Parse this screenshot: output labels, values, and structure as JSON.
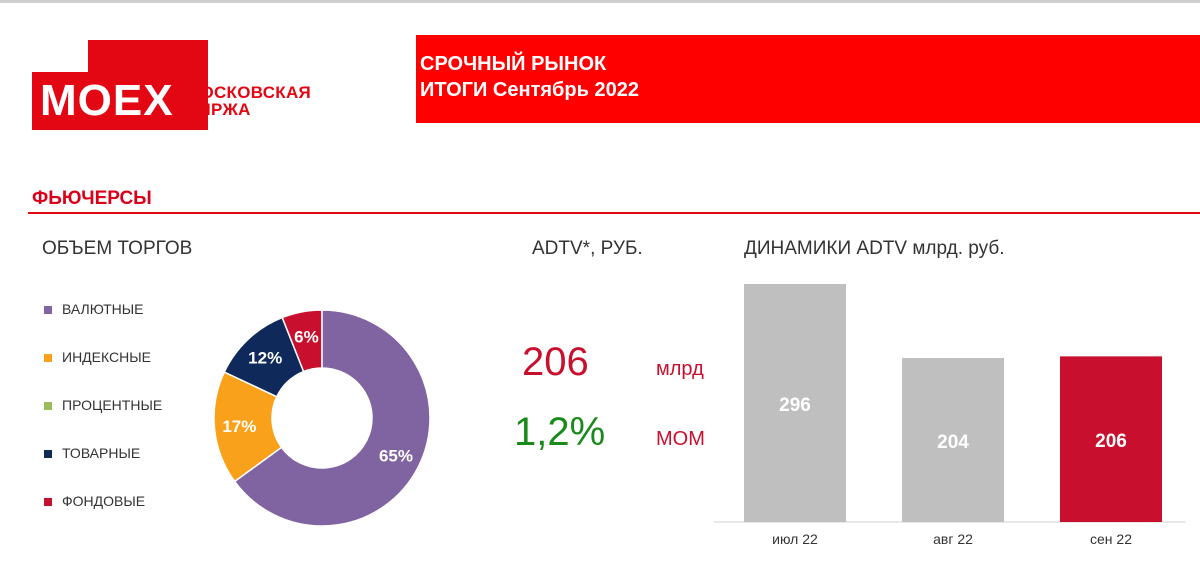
{
  "logo": {
    "mark": "MOEX",
    "name_line1": "МОСКОВСКАЯ",
    "name_line2": "БИРЖА"
  },
  "header": {
    "line1": "СРОЧНЫЙ РЫНОК",
    "line2": "ИТОГИ  Сентябрь 2022"
  },
  "section": {
    "title": "ФЬЮЧЕРСЫ"
  },
  "volume_panel": {
    "title": "ОБЪЕМ ТОРГОВ"
  },
  "adtv_panel": {
    "title": "ADTV*, РУБ.",
    "value": "206",
    "value_unit": "млрд",
    "change": "1,2%",
    "change_unit": "MOM",
    "value_color": "#c8102e",
    "change_color": "#1a8a1a"
  },
  "dynamics_panel": {
    "title": "ДИНАМИКИ ADTV млрд. руб."
  },
  "chart_data": [
    {
      "type": "pie",
      "title": "ОБЪЕМ ТОРГОВ",
      "donut": true,
      "legend": "left",
      "slices": [
        {
          "name": "ВАЛЮТНЫЕ",
          "value": 65,
          "label": "65%",
          "color": "#8064a2"
        },
        {
          "name": "ИНДЕКСНЫЕ",
          "value": 17,
          "label": "17%",
          "color": "#f9a11b"
        },
        {
          "name": "ПРОЦЕНТНЫЕ",
          "value": 0,
          "label": "",
          "color": "#9bbb59"
        },
        {
          "name": "ТОВАРНЫЕ",
          "value": 12,
          "label": "12%",
          "color": "#0f2a5a"
        },
        {
          "name": "ФОНДОВЫЕ",
          "value": 6,
          "label": "6%",
          "color": "#c8102e"
        }
      ]
    },
    {
      "type": "bar",
      "title": "ДИНАМИКИ ADTV млрд. руб.",
      "categories": [
        "июл 22",
        "авг 22",
        "сен 22"
      ],
      "values": [
        296,
        204,
        206
      ],
      "labels": [
        "296",
        "204",
        "206"
      ],
      "colors": [
        "#bfbfbf",
        "#bfbfbf",
        "#c8102e"
      ],
      "ylim": [
        0,
        296
      ]
    }
  ]
}
